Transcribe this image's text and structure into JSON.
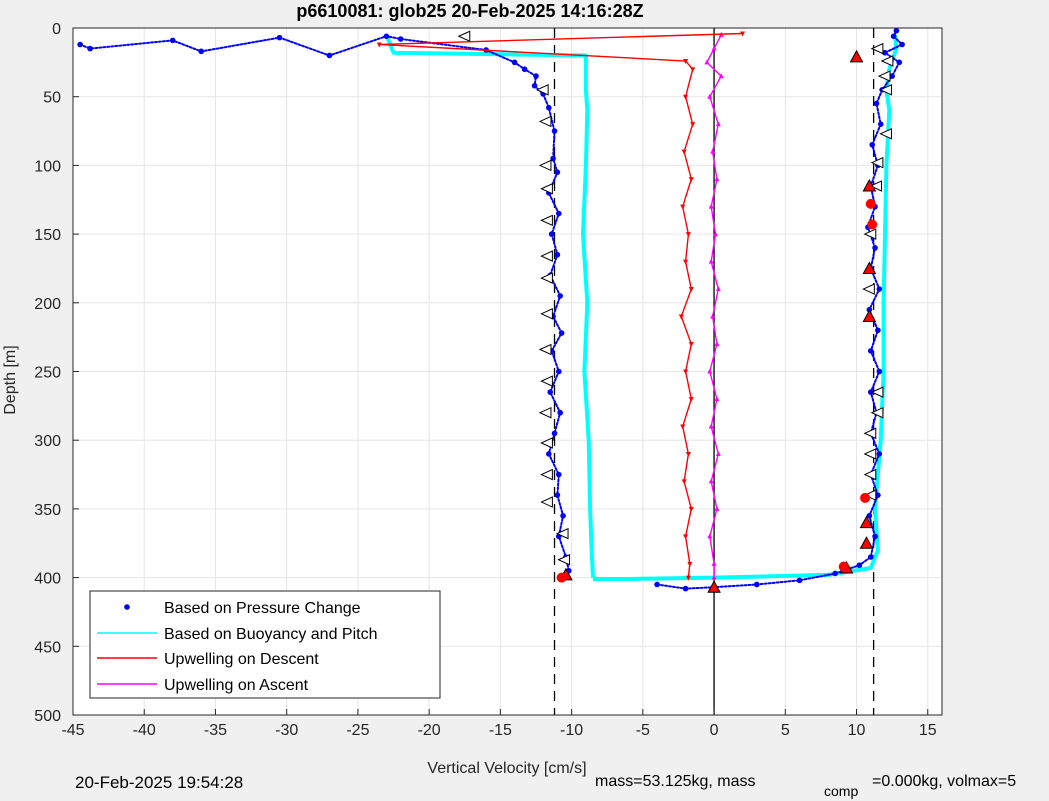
{
  "chart_data": {
    "type": "scatter",
    "title": "p6610081: glob25 20-Feb-2025 14:16:28Z",
    "xlabel": "Vertical Velocity [cm/s]",
    "ylabel": "Depth [m]",
    "xlim": [
      -45,
      16
    ],
    "ylim": [
      0,
      500
    ],
    "y_reversed": true,
    "grid": true,
    "xticks": [
      -45,
      -40,
      -35,
      -30,
      -25,
      -20,
      -15,
      -10,
      -5,
      0,
      5,
      10,
      15
    ],
    "yticks": [
      0,
      50,
      100,
      150,
      200,
      250,
      300,
      350,
      400,
      450,
      500
    ],
    "reference_lines": {
      "dashed_x": [
        -11.2,
        11.2
      ],
      "solid_x": [
        0
      ]
    },
    "legend_position": "bottom-left",
    "series": [
      {
        "name": "Based on Pressure Change",
        "color": "#0000ff",
        "descent": [
          [
            -44.5,
            12
          ],
          [
            -43.8,
            15
          ],
          [
            -38,
            9
          ],
          [
            -36,
            17
          ],
          [
            -30.5,
            7
          ],
          [
            -27,
            20
          ],
          [
            -23,
            6
          ],
          [
            -22,
            8
          ],
          [
            -16,
            16
          ],
          [
            -14,
            25
          ],
          [
            -13.3,
            30
          ],
          [
            -12.5,
            35
          ],
          [
            -12.6,
            42
          ],
          [
            -12.0,
            48
          ],
          [
            -11.6,
            58
          ],
          [
            -11.2,
            75
          ],
          [
            -11.3,
            95
          ],
          [
            -11.0,
            105
          ],
          [
            -11.6,
            120
          ],
          [
            -10.9,
            135
          ],
          [
            -11.4,
            150
          ],
          [
            -11.0,
            165
          ],
          [
            -11.5,
            180
          ],
          [
            -10.8,
            195
          ],
          [
            -11.3,
            210
          ],
          [
            -10.7,
            222
          ],
          [
            -11.4,
            235
          ],
          [
            -10.9,
            250
          ],
          [
            -11.5,
            265
          ],
          [
            -10.8,
            280
          ],
          [
            -11.2,
            295
          ],
          [
            -11.6,
            310
          ],
          [
            -10.9,
            325
          ],
          [
            -11.0,
            340
          ],
          [
            -10.6,
            355
          ],
          [
            -10.9,
            370
          ],
          [
            -10.4,
            385
          ],
          [
            -10.2,
            395
          ],
          [
            -10.6,
            400
          ]
        ],
        "ascent": [
          [
            -4,
            405
          ],
          [
            -2,
            408
          ],
          [
            0,
            407
          ],
          [
            3,
            405
          ],
          [
            6,
            402
          ],
          [
            8.5,
            397
          ],
          [
            10.2,
            391
          ],
          [
            11.0,
            385
          ],
          [
            11.3,
            370
          ],
          [
            10.9,
            355
          ],
          [
            11.5,
            340
          ],
          [
            11.0,
            325
          ],
          [
            11.6,
            310
          ],
          [
            11.0,
            295
          ],
          [
            11.4,
            280
          ],
          [
            11.0,
            265
          ],
          [
            11.6,
            250
          ],
          [
            11.0,
            235
          ],
          [
            11.5,
            220
          ],
          [
            10.9,
            205
          ],
          [
            11.6,
            190
          ],
          [
            11.0,
            175
          ],
          [
            11.3,
            160
          ],
          [
            10.8,
            145
          ],
          [
            11.3,
            130
          ],
          [
            11.0,
            115
          ],
          [
            11.5,
            100
          ],
          [
            11.1,
            85
          ],
          [
            11.7,
            70
          ],
          [
            11.4,
            55
          ],
          [
            11.8,
            45
          ],
          [
            12.5,
            35
          ],
          [
            13.0,
            25
          ],
          [
            12.0,
            18
          ],
          [
            13.2,
            12
          ],
          [
            12.6,
            6
          ],
          [
            12.8,
            2
          ]
        ]
      },
      {
        "name": "Based on Buoyancy and Pitch",
        "color": "#00ffff",
        "descent": [
          [
            -23,
            5
          ],
          [
            -22.5,
            18
          ],
          [
            -9,
            20
          ],
          [
            -9,
            45
          ],
          [
            -8.9,
            60
          ],
          [
            -9.0,
            100
          ],
          [
            -9.2,
            150
          ],
          [
            -8.9,
            200
          ],
          [
            -9.1,
            250
          ],
          [
            -8.8,
            300
          ],
          [
            -8.7,
            350
          ],
          [
            -8.6,
            380
          ],
          [
            -8.5,
            400
          ]
        ],
        "ascent": [
          [
            -8.5,
            401
          ],
          [
            -6,
            401
          ],
          [
            0,
            400
          ],
          [
            8,
            398
          ],
          [
            11,
            393
          ],
          [
            11.5,
            380
          ],
          [
            11.3,
            350
          ],
          [
            11.7,
            300
          ],
          [
            11.9,
            250
          ],
          [
            11.9,
            200
          ],
          [
            12.0,
            150
          ],
          [
            12.1,
            100
          ],
          [
            12.3,
            60
          ],
          [
            12.1,
            45
          ],
          [
            12.3,
            30
          ],
          [
            12.8,
            15
          ],
          [
            12.7,
            5
          ]
        ]
      },
      {
        "name": "Upwelling on Descent",
        "color": "#ff0000",
        "points": [
          [
            2,
            4
          ],
          [
            -23.5,
            12
          ],
          [
            -2,
            24
          ],
          [
            -1.5,
            30
          ],
          [
            -2.0,
            50
          ],
          [
            -1.5,
            70
          ],
          [
            -2.1,
            90
          ],
          [
            -1.6,
            110
          ],
          [
            -2.2,
            130
          ],
          [
            -1.8,
            150
          ],
          [
            -2.0,
            170
          ],
          [
            -1.6,
            190
          ],
          [
            -2.3,
            210
          ],
          [
            -1.6,
            230
          ],
          [
            -2.0,
            250
          ],
          [
            -1.6,
            270
          ],
          [
            -2.2,
            290
          ],
          [
            -1.8,
            310
          ],
          [
            -2.1,
            330
          ],
          [
            -1.6,
            350
          ],
          [
            -2.0,
            370
          ],
          [
            -1.7,
            390
          ],
          [
            -1.8,
            400
          ]
        ]
      },
      {
        "name": "Upwelling on Ascent",
        "color": "#ff00ff",
        "points": [
          [
            0,
            400
          ],
          [
            0.0,
            390
          ],
          [
            -0.3,
            370
          ],
          [
            0.2,
            350
          ],
          [
            -0.2,
            330
          ],
          [
            0.3,
            310
          ],
          [
            -0.2,
            290
          ],
          [
            0.2,
            270
          ],
          [
            -0.3,
            250
          ],
          [
            0.2,
            230
          ],
          [
            -0.1,
            210
          ],
          [
            0.3,
            190
          ],
          [
            -0.2,
            170
          ],
          [
            0.1,
            150
          ],
          [
            -0.2,
            130
          ],
          [
            0.2,
            110
          ],
          [
            -0.1,
            90
          ],
          [
            0.3,
            70
          ],
          [
            -0.3,
            50
          ],
          [
            0.5,
            35
          ],
          [
            -0.5,
            25
          ],
          [
            0.0,
            15
          ],
          [
            0.5,
            5
          ]
        ]
      }
    ],
    "markers": [
      {
        "shape": "triangle-left",
        "fill": "#ffffff",
        "points": [
          [
            -17.5,
            6
          ],
          [
            -12,
            45
          ],
          [
            -11.8,
            68
          ],
          [
            -11.8,
            100
          ],
          [
            -11.7,
            117
          ],
          [
            -11.7,
            140
          ],
          [
            -11.7,
            166
          ],
          [
            -11.7,
            182
          ],
          [
            -11.7,
            208
          ],
          [
            -11.8,
            234
          ],
          [
            -11.7,
            257
          ],
          [
            -11.8,
            280
          ],
          [
            -11.7,
            302
          ],
          [
            -11.7,
            325
          ],
          [
            -11.7,
            345
          ],
          [
            -10.6,
            368
          ],
          [
            -10.5,
            387
          ],
          [
            11.5,
            15
          ],
          [
            12.2,
            24
          ],
          [
            12.0,
            35
          ],
          [
            12.1,
            45
          ],
          [
            12.1,
            77
          ],
          [
            11.5,
            98
          ],
          [
            11.4,
            115
          ],
          [
            11.0,
            150
          ],
          [
            10.9,
            190
          ],
          [
            11.5,
            265
          ],
          [
            11.5,
            280
          ],
          [
            11.0,
            295
          ],
          [
            11.0,
            310
          ],
          [
            11.0,
            325
          ],
          [
            11.0,
            340
          ]
        ]
      },
      {
        "shape": "triangle-up",
        "fill": "#ff0000",
        "points": [
          [
            -10.4,
            398
          ],
          [
            10.0,
            21
          ],
          [
            10.9,
            115
          ],
          [
            10.9,
            175
          ],
          [
            10.9,
            210
          ],
          [
            10.7,
            360
          ],
          [
            10.7,
            375
          ],
          [
            9.3,
            393
          ],
          [
            0.0,
            407
          ]
        ]
      },
      {
        "shape": "circle",
        "fill": "#ff0000",
        "points": [
          [
            11.0,
            128
          ],
          [
            11.1,
            143
          ],
          [
            10.6,
            342
          ],
          [
            9.1,
            392
          ],
          [
            -10.7,
            400
          ]
        ]
      }
    ]
  },
  "footer": {
    "timestamp": "20-Feb-2025 19:54:28",
    "mass_text": "mass=53.125kg, mass",
    "comp_sub": "comp",
    "volmax_text": "=0.000kg, volmax=5"
  }
}
